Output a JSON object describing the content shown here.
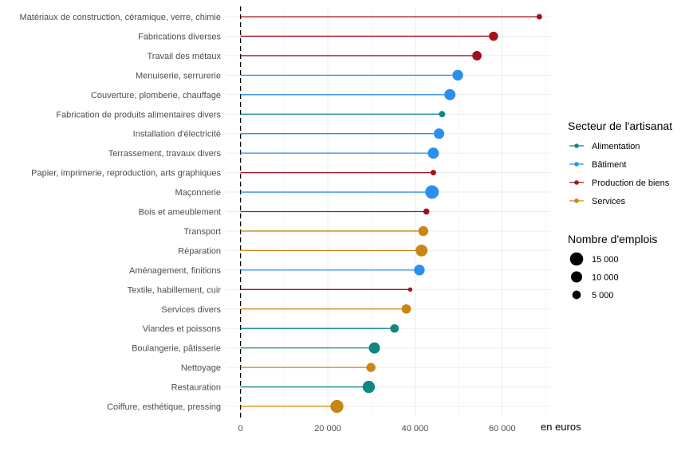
{
  "chart_data": {
    "type": "lollipop",
    "x_unit_label": "en euros",
    "xlim": [
      0,
      70000
    ],
    "x_ticks": [
      0,
      20000,
      40000,
      60000
    ],
    "x_tick_labels": [
      "0",
      "20 000",
      "40 000",
      "60 000"
    ],
    "reference_line_x": 0,
    "grid": true,
    "legend_position": "right",
    "colors": {
      "Alimentation": "#0f8783",
      "Bâtiment": "#2b8ff0",
      "Production de biens": "#a3121c",
      "Services": "#c98612"
    },
    "legend_color": {
      "title": "Secteur de l'artisanat",
      "items": [
        "Alimentation",
        "Bâtiment",
        "Production de biens",
        "Services"
      ]
    },
    "legend_size": {
      "title": "Nombre d'emplois",
      "items": [
        {
          "value": 15000,
          "label": "15 000"
        },
        {
          "value": 10000,
          "label": "10 000"
        },
        {
          "value": 5000,
          "label": "5 000"
        }
      ]
    },
    "rows": [
      {
        "label": "Matériaux de construction, céramique, verre, chimie",
        "value": 68500,
        "sector": "Production de biens",
        "jobs": 1500
      },
      {
        "label": "Fabrications diverses",
        "value": 58000,
        "sector": "Production de biens",
        "jobs": 6000
      },
      {
        "label": "Travail des métaux",
        "value": 54200,
        "sector": "Production de biens",
        "jobs": 6500
      },
      {
        "label": "Menuiserie, serrurerie",
        "value": 49800,
        "sector": "Bâtiment",
        "jobs": 9000
      },
      {
        "label": "Couverture, plomberie, chauffage",
        "value": 48000,
        "sector": "Bâtiment",
        "jobs": 10000
      },
      {
        "label": "Fabrication de produits alimentaires divers",
        "value": 46200,
        "sector": "Alimentation",
        "jobs": 2200
      },
      {
        "label": "Installation d'électricité",
        "value": 45500,
        "sector": "Bâtiment",
        "jobs": 8500
      },
      {
        "label": "Terrassement, travaux divers",
        "value": 44200,
        "sector": "Bâtiment",
        "jobs": 10000
      },
      {
        "label": "Papier, imprimerie, reproduction, arts graphiques",
        "value": 44200,
        "sector": "Production de biens",
        "jobs": 1500
      },
      {
        "label": "Maçonnerie",
        "value": 43900,
        "sector": "Bâtiment",
        "jobs": 16000
      },
      {
        "label": "Bois et ameublement",
        "value": 42600,
        "sector": "Production de biens",
        "jobs": 2000
      },
      {
        "label": "Transport",
        "value": 41900,
        "sector": "Services",
        "jobs": 7500
      },
      {
        "label": "Réparation",
        "value": 41500,
        "sector": "Services",
        "jobs": 11500
      },
      {
        "label": "Aménagement, finitions",
        "value": 41000,
        "sector": "Bâtiment",
        "jobs": 9000
      },
      {
        "label": "Textile, habillement, cuir",
        "value": 38900,
        "sector": "Production de biens",
        "jobs": 600
      },
      {
        "label": "Services divers",
        "value": 38000,
        "sector": "Services",
        "jobs": 6500
      },
      {
        "label": "Viandes et poissons",
        "value": 35300,
        "sector": "Alimentation",
        "jobs": 5000
      },
      {
        "label": "Boulangerie, pâtisserie",
        "value": 30700,
        "sector": "Alimentation",
        "jobs": 10000
      },
      {
        "label": "Nettoyage",
        "value": 29900,
        "sector": "Services",
        "jobs": 6000
      },
      {
        "label": "Restauration",
        "value": 29400,
        "sector": "Alimentation",
        "jobs": 12500
      },
      {
        "label": "Coiffure, esthétique, pressing",
        "value": 22100,
        "sector": "Services",
        "jobs": 14500
      }
    ]
  }
}
